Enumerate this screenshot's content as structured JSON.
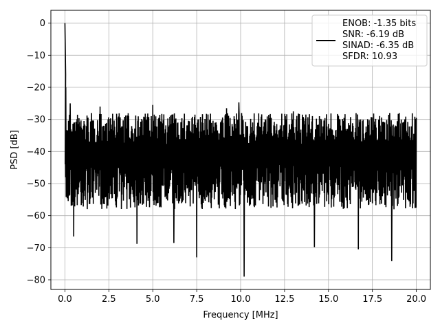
{
  "chart_data": {
    "type": "line",
    "xlabel": "Frequency [MHz]",
    "ylabel": "PSD [dB]",
    "xlim": [
      -0.8,
      20.8
    ],
    "ylim": [
      -83,
      4
    ],
    "x_ticks": [
      0.0,
      2.5,
      5.0,
      7.5,
      10.0,
      12.5,
      15.0,
      17.5,
      20.0
    ],
    "x_tick_labels": [
      "0.0",
      "2.5",
      "5.0",
      "7.5",
      "10.0",
      "12.5",
      "15.0",
      "17.5",
      "20.0"
    ],
    "y_ticks": [
      0,
      -10,
      -20,
      -30,
      -40,
      -50,
      -60,
      -70,
      -80
    ],
    "y_tick_labels": [
      "0",
      "−10",
      "−20",
      "−30",
      "−40",
      "−50",
      "−60",
      "−70",
      "−80"
    ],
    "grid": true,
    "legend_position": "top-right",
    "series": [
      {
        "name": "ENOB: -1.35 bits\nSNR: -6.19 dB\nSINAD: -6.35 dB\nSFDR: 10.93",
        "color": "#000000",
        "description_values": {
          "x_range": [
            0.0,
            20.0
          ],
          "dc_peak": 0.0,
          "noise_floor_upper": -28,
          "noise_floor_lower": -50,
          "minimum_dips": [
            {
              "x": 0.5,
              "y": -66.5
            },
            {
              "x": 4.1,
              "y": -68.8
            },
            {
              "x": 6.2,
              "y": -68.5
            },
            {
              "x": 7.5,
              "y": -73.0
            },
            {
              "x": 10.2,
              "y": -79.0
            },
            {
              "x": 14.2,
              "y": -69.8
            },
            {
              "x": 16.7,
              "y": -70.5
            },
            {
              "x": 18.6,
              "y": -74.2
            }
          ],
          "upper_peaks": [
            {
              "x": 0.05,
              "y": -20.0
            },
            {
              "x": 0.3,
              "y": -25.0
            },
            {
              "x": 2.0,
              "y": -26.0
            },
            {
              "x": 5.0,
              "y": -25.5
            },
            {
              "x": 9.2,
              "y": -26.5
            },
            {
              "x": 9.9,
              "y": -24.7
            },
            {
              "x": 13.0,
              "y": -27.5
            },
            {
              "x": 20.0,
              "y": -29.5
            }
          ]
        }
      }
    ]
  }
}
